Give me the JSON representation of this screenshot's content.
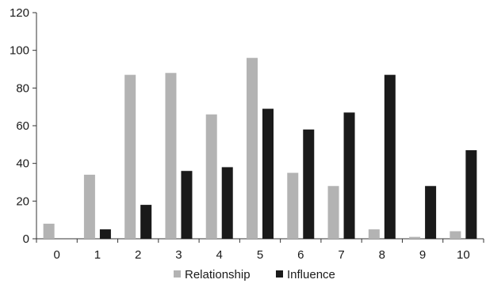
{
  "chart_data": {
    "type": "bar",
    "title": "",
    "xlabel": "",
    "ylabel": "",
    "categories": [
      "0",
      "1",
      "2",
      "3",
      "4",
      "5",
      "6",
      "7",
      "8",
      "9",
      "10"
    ],
    "series": [
      {
        "name": "Relationship",
        "color": "#b3b3b3",
        "values": [
          8,
          34,
          87,
          88,
          66,
          96,
          35,
          28,
          5,
          1,
          4
        ]
      },
      {
        "name": "Influence",
        "color": "#1a1a1a",
        "values": [
          0,
          5,
          18,
          36,
          38,
          69,
          58,
          67,
          87,
          28,
          47
        ]
      }
    ],
    "ylim": [
      0,
      120
    ],
    "yticks": [
      0,
      20,
      40,
      60,
      80,
      100,
      120
    ],
    "grid": false,
    "legend_position": "bottom-center"
  }
}
